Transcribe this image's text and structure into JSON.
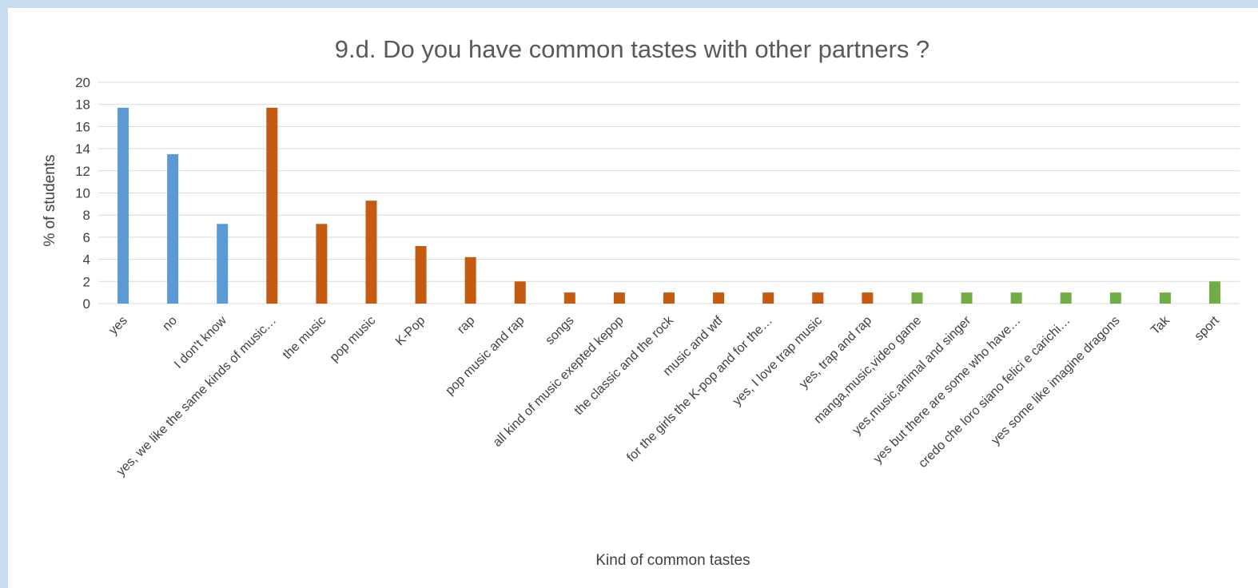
{
  "chart_data": {
    "type": "bar",
    "title": "9.d. Do you have common tastes with other partners ?",
    "xlabel": "Kind of common tastes",
    "ylabel": "% of students",
    "ylim": [
      0,
      20
    ],
    "yticks": [
      0,
      2,
      4,
      6,
      8,
      10,
      12,
      14,
      16,
      18,
      20
    ],
    "grid": true,
    "legend": "none",
    "categories": [
      "yes",
      "no",
      "I don't know",
      "yes, we like the same kinds of music…",
      "the music",
      "pop music",
      "K-Pop",
      "rap",
      "pop music and rap",
      "songs",
      "all kind of music exepted kepop",
      "the classic and the rock",
      "music and wtf",
      "for the girls the K-pop and for the…",
      "yes, I love trap music",
      "yes, trap and rap",
      "manga,music,video game",
      "yes,music,animal and singer",
      "yes but there are some who have…",
      "credo che loro siano felici e carichi…",
      "yes some like imagine dragons",
      "Tak",
      "sport"
    ],
    "values": [
      17.7,
      13.5,
      7.2,
      17.7,
      7.2,
      9.3,
      5.2,
      4.2,
      2.0,
      1.0,
      1.0,
      1.0,
      1.0,
      1.0,
      1.0,
      1.0,
      1.0,
      1.0,
      1.0,
      1.0,
      1.0,
      1.0,
      2.0
    ],
    "bar_colors": [
      "#5b9bd5",
      "#5b9bd5",
      "#5b9bd5",
      "#c55a11",
      "#c55a11",
      "#c55a11",
      "#c55a11",
      "#c55a11",
      "#c55a11",
      "#c55a11",
      "#c55a11",
      "#c55a11",
      "#c55a11",
      "#c55a11",
      "#c55a11",
      "#c55a11",
      "#70ad47",
      "#70ad47",
      "#70ad47",
      "#70ad47",
      "#70ad47",
      "#70ad47",
      "#70ad47"
    ],
    "colors": {
      "grid": "#d9d9d9",
      "text": "#404040",
      "title": "#595959",
      "frame": "#c9ddf0"
    }
  }
}
